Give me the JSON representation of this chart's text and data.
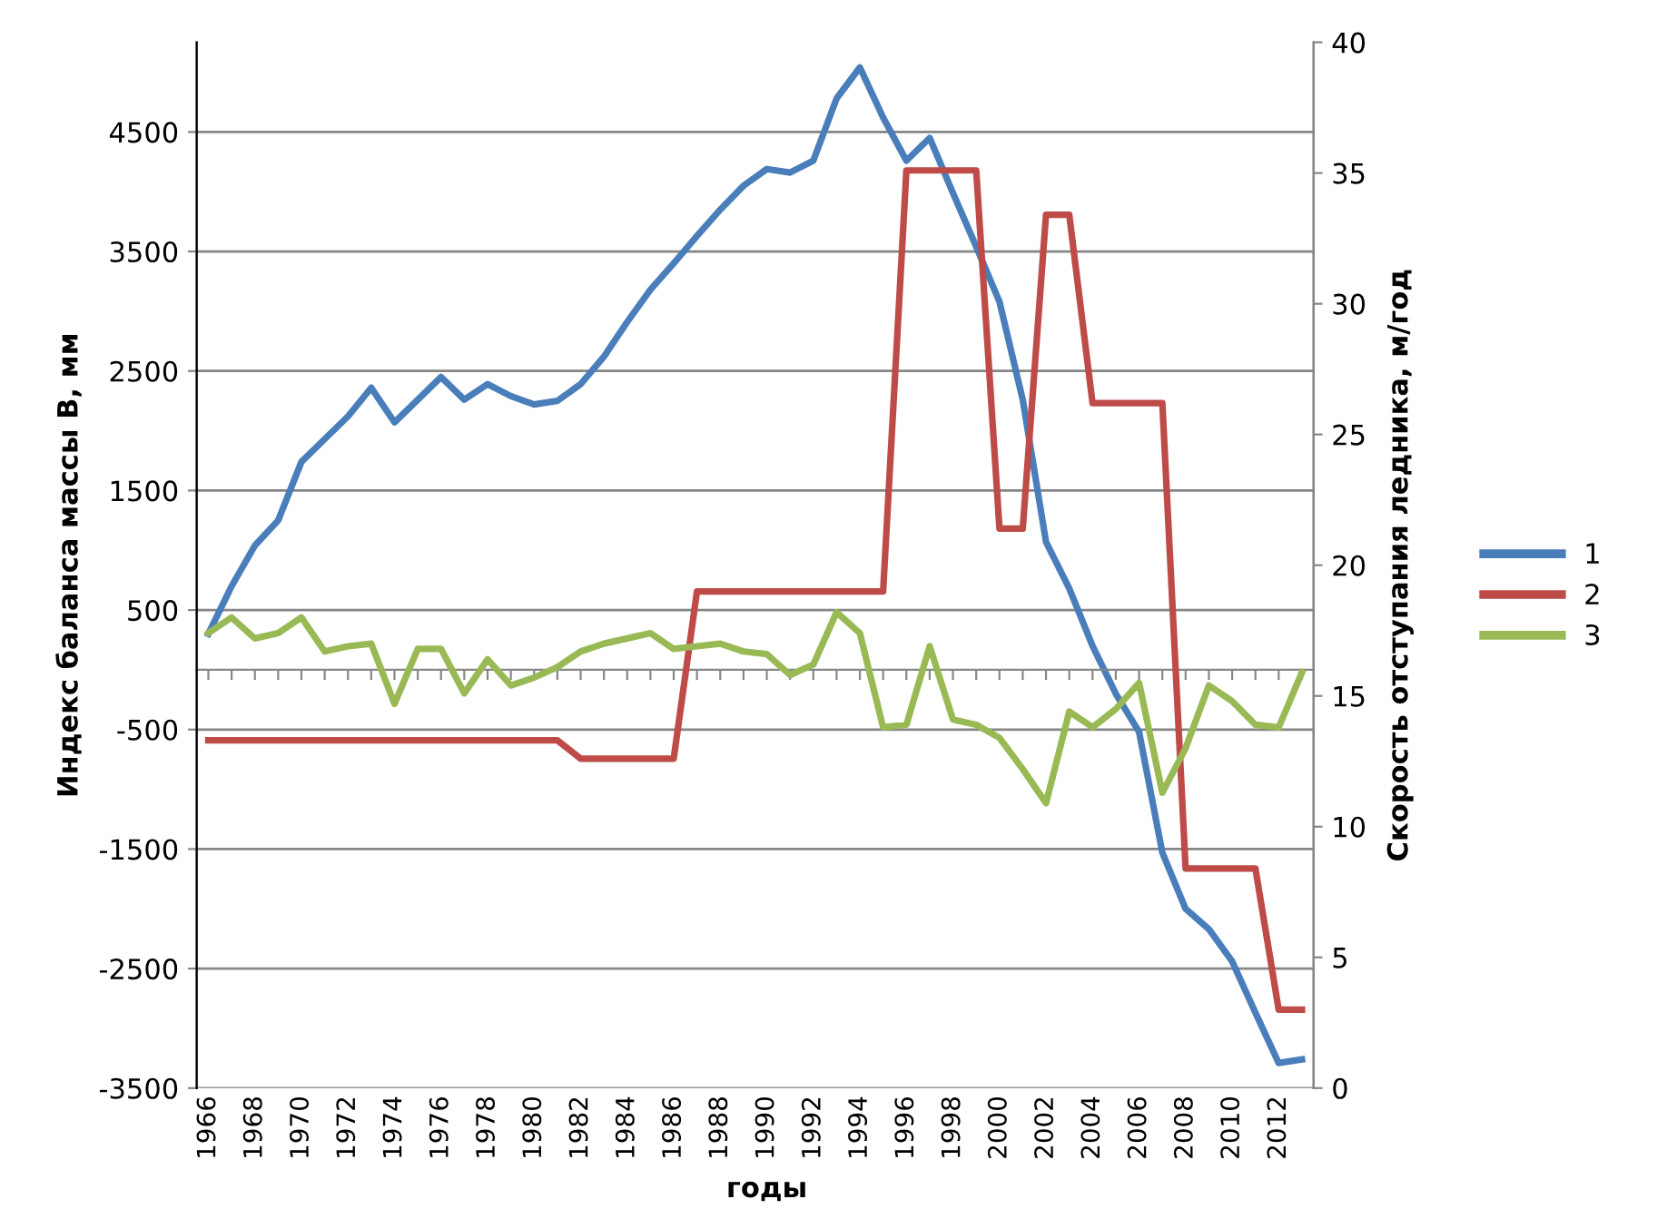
{
  "chart_data": {
    "type": "line",
    "xlabel": "годы",
    "ylabel": "Индекс баланса массы B, мм",
    "y2label": "Скорость отступания ледника, м/год",
    "categories": [
      "1966",
      null,
      "1968",
      null,
      "1970",
      null,
      "1972",
      null,
      "1974",
      null,
      "1976",
      null,
      "1978",
      null,
      "1980",
      null,
      "1982",
      null,
      "1984",
      null,
      "1986",
      null,
      "1988",
      null,
      "1990",
      null,
      "1992",
      null,
      "1994",
      null,
      "1996",
      null,
      "1998",
      null,
      "2000",
      null,
      "2002",
      null,
      "2004",
      null,
      "2006",
      null,
      "2008",
      null,
      "2010",
      null,
      "2012",
      null
    ],
    "series": [
      {
        "name": "1",
        "color": "#4a7ebb",
        "values": [
          300,
          700,
          1040,
          1250,
          1740,
          1930,
          2120,
          2360,
          2070,
          2260,
          2450,
          2260,
          2390,
          2290,
          2220,
          2250,
          2390,
          2620,
          2910,
          3180,
          3400,
          3630,
          3850,
          4050,
          4190,
          4160,
          4260,
          4780,
          5040,
          4620,
          4260,
          4450,
          3990,
          3540,
          3080,
          2260,
          1070,
          680,
          200,
          -200,
          -520,
          -1530,
          -2000,
          -2170,
          -2440,
          -2870,
          -3290,
          -3260
        ]
      },
      {
        "name": "2",
        "color": "#be4b48",
        "axis": "y2",
        "values": [
          13.3,
          13.3,
          13.3,
          13.3,
          13.3,
          13.3,
          13.3,
          13.3,
          13.3,
          13.3,
          13.3,
          13.3,
          13.3,
          13.3,
          13.3,
          13.3,
          12.6,
          12.6,
          12.6,
          12.6,
          12.6,
          19.0,
          19.0,
          19.0,
          19.0,
          19.0,
          19.0,
          19.0,
          19.0,
          19.0,
          35.1,
          35.1,
          35.1,
          35.1,
          21.4,
          21.4,
          33.4,
          33.4,
          26.2,
          26.2,
          26.2,
          26.2,
          8.4,
          8.4,
          8.4,
          8.4,
          3.0,
          3.0
        ]
      },
      {
        "name": "3",
        "color": "#98b954",
        "axis": "y2",
        "values": [
          17.4,
          18.0,
          17.2,
          17.4,
          18.0,
          16.7,
          16.9,
          17.0,
          14.7,
          16.8,
          16.8,
          15.1,
          16.4,
          15.4,
          15.7,
          16.1,
          16.7,
          17.0,
          17.2,
          17.4,
          16.8,
          16.9,
          17.0,
          16.7,
          16.6,
          15.8,
          16.2,
          18.2,
          17.4,
          13.8,
          13.9,
          16.9,
          14.1,
          13.9,
          13.4,
          12.2,
          10.9,
          14.4,
          13.8,
          14.5,
          15.5,
          11.3,
          13.0,
          15.4,
          14.8,
          13.9,
          13.8,
          15.9
        ]
      }
    ],
    "ylim": [
      -3500,
      5250
    ],
    "yticks": [
      -3500,
      -2500,
      -1500,
      -500,
      500,
      1500,
      2500,
      3500,
      4500
    ],
    "y2lim": [
      0,
      40
    ],
    "y2ticks": [
      0,
      5,
      10,
      15,
      20,
      25,
      30,
      35,
      40
    ],
    "grid": "y",
    "legend": "right",
    "marker": "none",
    "line_style": "solid"
  }
}
